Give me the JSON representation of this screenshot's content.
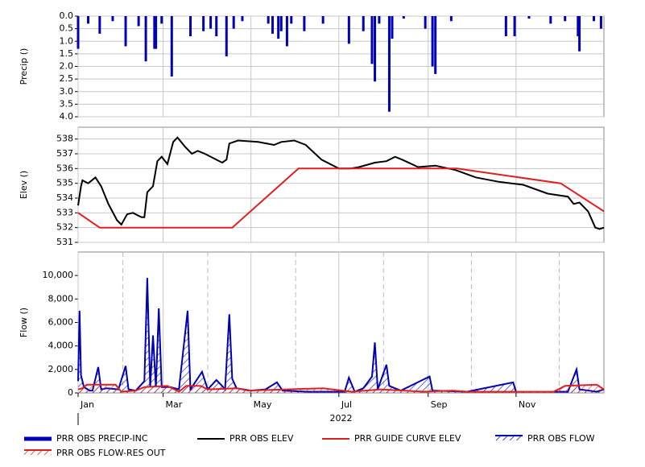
{
  "chart_data": [
    {
      "type": "bar",
      "ylabel": "Precip ()",
      "xlim": [
        0,
        365
      ],
      "xticks": [
        0,
        59,
        120,
        181,
        243,
        304
      ],
      "ylim": [
        0,
        4
      ],
      "invert_y": true,
      "grid": true,
      "yticks": [
        {
          "value": 0,
          "label": "0.0"
        },
        {
          "value": 0.5,
          "label": "0.5"
        },
        {
          "value": 1,
          "label": "1.0"
        },
        {
          "value": 1.5,
          "label": "1.5"
        },
        {
          "value": 2,
          "label": "2.0"
        },
        {
          "value": 2.5,
          "label": "2.5"
        },
        {
          "value": 3,
          "label": "3.0"
        },
        {
          "value": 3.5,
          "label": "3.5"
        },
        {
          "value": 4,
          "label": "4.0"
        }
      ],
      "series": [
        {
          "name": "PRR OBS PRECIP-INC",
          "color": "#0000b4",
          "style": "bar",
          "x": [
            0,
            7,
            15,
            24,
            33,
            42,
            47,
            53,
            54,
            58,
            65,
            78,
            87,
            92,
            96,
            103,
            108,
            114,
            132,
            135,
            139,
            141,
            145,
            148,
            157,
            170,
            188,
            198,
            204,
            206,
            209,
            216,
            218,
            226,
            241,
            246,
            248,
            259,
            297,
            303,
            313,
            328,
            338,
            347,
            348,
            358,
            363
          ],
          "values": [
            1.3,
            0.3,
            0.7,
            0.2,
            1.2,
            0.4,
            1.8,
            1.3,
            1.3,
            0.3,
            2.4,
            0.8,
            0.6,
            0.5,
            0.8,
            1.6,
            0.5,
            0.2,
            0.3,
            0.7,
            0.9,
            0.6,
            1.2,
            0.3,
            0.6,
            0.3,
            1.1,
            0.6,
            1.9,
            2.6,
            0.3,
            3.8,
            0.9,
            0.1,
            0.5,
            2.0,
            2.3,
            0.2,
            0.8,
            0.8,
            0.1,
            0.3,
            0.2,
            0.8,
            1.4,
            0.2,
            0.5
          ]
        }
      ]
    },
    {
      "type": "line",
      "ylabel": "Elev ()",
      "xlim": [
        0,
        365
      ],
      "xticks": [
        0,
        59,
        120,
        181,
        243,
        304
      ],
      "ylim": [
        531,
        538.8
      ],
      "yticks": [
        531,
        532,
        533,
        534,
        535,
        536,
        537,
        538
      ],
      "grid": true,
      "series": [
        {
          "name": "PRR OBS ELEV",
          "color": "#000000",
          "style": "line",
          "x": [
            0,
            2,
            3,
            7,
            12,
            16,
            21,
            27,
            30,
            34,
            38,
            44,
            46,
            48,
            52,
            55,
            58,
            62,
            66,
            69,
            74,
            79,
            83,
            88,
            94,
            100,
            103,
            105,
            111,
            125,
            136,
            141,
            150,
            158,
            169,
            181,
            189,
            195,
            206,
            214,
            220,
            225,
            236,
            248,
            262,
            276,
            292,
            309,
            326,
            340,
            344,
            348,
            354,
            359,
            362,
            365
          ],
          "values": [
            533.5,
            534.8,
            535.2,
            535.0,
            535.4,
            534.8,
            533.6,
            532.5,
            532.2,
            532.9,
            533.0,
            532.7,
            532.7,
            534.4,
            534.8,
            536.5,
            536.8,
            536.3,
            537.8,
            538.1,
            537.5,
            537.0,
            537.2,
            537.0,
            536.7,
            536.4,
            536.6,
            537.7,
            537.9,
            537.8,
            537.6,
            537.8,
            537.9,
            537.6,
            536.6,
            536.0,
            536.0,
            536.1,
            536.4,
            536.5,
            536.8,
            536.6,
            536.1,
            536.2,
            535.9,
            535.4,
            535.1,
            534.9,
            534.3,
            534.1,
            533.6,
            533.7,
            533.1,
            532.0,
            531.9,
            532.0
          ]
        },
        {
          "name": "PRR GUIDE CURVE ELEV",
          "color": "#e02020",
          "style": "line",
          "x": [
            0,
            15,
            107,
            153,
            263,
            335,
            365
          ],
          "values": [
            533.0,
            532.0,
            532.0,
            536.0,
            536.0,
            535.0,
            533.1
          ]
        }
      ]
    },
    {
      "type": "line",
      "ylabel": "Flow ()",
      "xlabel": "2022",
      "xlim": [
        0,
        365
      ],
      "xticks": [
        {
          "value": 0,
          "label": "Jan"
        },
        {
          "value": 59,
          "label": "Mar"
        },
        {
          "value": 120,
          "label": "May"
        },
        {
          "value": 181,
          "label": "Jul"
        },
        {
          "value": 243,
          "label": "Sep"
        },
        {
          "value": 304,
          "label": "Nov"
        }
      ],
      "x_minor_ticks": [
        31,
        90,
        151,
        212,
        273,
        334
      ],
      "grid": "x",
      "ylim": [
        0,
        12000
      ],
      "yticks": [
        0,
        {
          "value": 2000,
          "label": "2,000"
        },
        {
          "value": 4000,
          "label": "4,000"
        },
        {
          "value": 6000,
          "label": "6,000"
        },
        {
          "value": 8000,
          "label": "8,000"
        },
        {
          "value": 10000,
          "label": "10,000"
        }
      ],
      "series": [
        {
          "name": "PRR OBS FLOW",
          "color": "#0000b4",
          "style": "hatch",
          "x": [
            0,
            1,
            2,
            4,
            8,
            10,
            14,
            16,
            20,
            28,
            33,
            35,
            40,
            46,
            48,
            50,
            52,
            54,
            56,
            58,
            64,
            70,
            76,
            78,
            86,
            90,
            96,
            100,
            102,
            105,
            107,
            110,
            120,
            130,
            138,
            142,
            160,
            185,
            188,
            192,
            198,
            204,
            206,
            208,
            214,
            216,
            224,
            244,
            246,
            270,
            302,
            304,
            340,
            346,
            348,
            360,
            365
          ],
          "values": [
            1000,
            7000,
            1500,
            500,
            200,
            200,
            2200,
            300,
            400,
            300,
            2300,
            300,
            200,
            1000,
            9800,
            500,
            4900,
            500,
            7200,
            500,
            500,
            300,
            7000,
            300,
            1800,
            300,
            1100,
            600,
            300,
            6700,
            1200,
            400,
            200,
            300,
            900,
            200,
            100,
            100,
            1300,
            100,
            400,
            1400,
            4300,
            300,
            2400,
            600,
            200,
            1400,
            200,
            100,
            900,
            100,
            100,
            2000,
            300,
            100,
            300
          ]
        },
        {
          "name": "PRR OBS FLOW-RES OUT",
          "color": "#e02020",
          "style": "hatch",
          "x": [
            0,
            3,
            6,
            26,
            30,
            40,
            46,
            62,
            70,
            75,
            85,
            90,
            110,
            118,
            145,
            170,
            190,
            210,
            240,
            260,
            270,
            330,
            338,
            360,
            365
          ],
          "values": [
            300,
            400,
            700,
            700,
            100,
            200,
            500,
            600,
            100,
            600,
            600,
            300,
            400,
            200,
            300,
            400,
            100,
            300,
            100,
            200,
            100,
            100,
            600,
            700,
            300
          ]
        }
      ]
    }
  ]
}
